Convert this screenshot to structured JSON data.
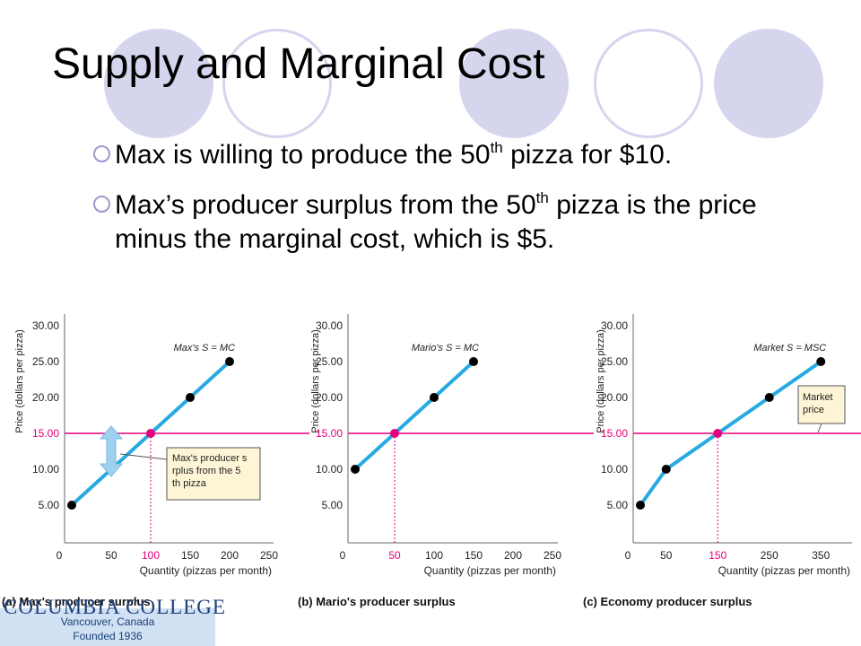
{
  "slide": {
    "title": "Supply and Marginal Cost",
    "bullets": [
      {
        "pre": "Max is willing to produce the 50",
        "sup": "th",
        "post": " pizza for $10."
      },
      {
        "pre": "Max’s producer surplus from the 50",
        "sup": "th",
        "post": " pizza is the price minus the marginal cost, which is $5."
      }
    ]
  },
  "logo": {
    "name": "COLUMBIA COLLEGE",
    "location": "Vancouver, Canada",
    "founded": "Founded 1936"
  },
  "colors": {
    "supply_line": "#27a9e1",
    "price_line": "#e6007e",
    "annotation_box": "#fdf5d5",
    "deco_circles": "#d5d5ee",
    "arrow": "#9fd0f0"
  },
  "chart_data": [
    {
      "type": "line",
      "panel_label": "(a) Max's producer surplus",
      "ylabel": "Price (dollars per pizza)",
      "xlabel": "Quantity (pizzas per month)",
      "xlim": [
        0,
        250
      ],
      "ylim": [
        0,
        35
      ],
      "xticks": [
        "0",
        "50",
        "100",
        "150",
        "200",
        "250"
      ],
      "yticks": [
        "5.00",
        "10.00",
        "15.00",
        "20.00",
        "25.00",
        "30.00"
      ],
      "price": 15,
      "price_tick_label": "15.00",
      "highlight_x": 100,
      "highlight_x_label": "100",
      "series": [
        {
          "name": "Max's S = MC",
          "x": [
            0,
            50,
            100,
            150,
            200
          ],
          "y": [
            5,
            10,
            15,
            20,
            25
          ]
        }
      ],
      "annotation": "Max's producer surplus from the 50th pizza",
      "surplus_arrow": {
        "x": 50,
        "from": 10,
        "to": 15
      }
    },
    {
      "type": "line",
      "panel_label": "(b) Mario's producer surplus",
      "ylabel": "Price (dollars per pizza)",
      "xlabel": "Quantity (pizzas per month)",
      "xlim": [
        0,
        250
      ],
      "ylim": [
        0,
        35
      ],
      "xticks": [
        "0",
        "50",
        "100",
        "150",
        "200",
        "250"
      ],
      "yticks": [
        "5.00",
        "10.00",
        "15.00",
        "20.00",
        "25.00",
        "30.00"
      ],
      "price": 15,
      "price_tick_label": "15.00",
      "highlight_x": 50,
      "highlight_x_label": "50",
      "series": [
        {
          "name": "Mario's S = MC",
          "x": [
            0,
            50,
            100,
            150
          ],
          "y": [
            10,
            15,
            20,
            25
          ]
        }
      ]
    },
    {
      "type": "line",
      "panel_label": "(c) Economy producer surplus",
      "ylabel": "Price (dollars per pizza)",
      "xlabel": "Quantity (pizzas per month)",
      "xlim": [
        0,
        400
      ],
      "ylim": [
        0,
        35
      ],
      "xticks": [
        "0",
        "50",
        "150",
        "250",
        "350"
      ],
      "xtick_values": [
        0,
        50,
        150,
        250,
        350
      ],
      "yticks": [
        "5.00",
        "10.00",
        "15.00",
        "20.00",
        "25.00",
        "30.00"
      ],
      "price": 15,
      "price_tick_label": "15.00",
      "highlight_x": 150,
      "highlight_x_label": "150",
      "series": [
        {
          "name": "Market S = MSC",
          "x": [
            0,
            50,
            150,
            250,
            350
          ],
          "y": [
            5,
            10,
            15,
            20,
            25
          ]
        }
      ],
      "annotation": "Market price"
    }
  ]
}
